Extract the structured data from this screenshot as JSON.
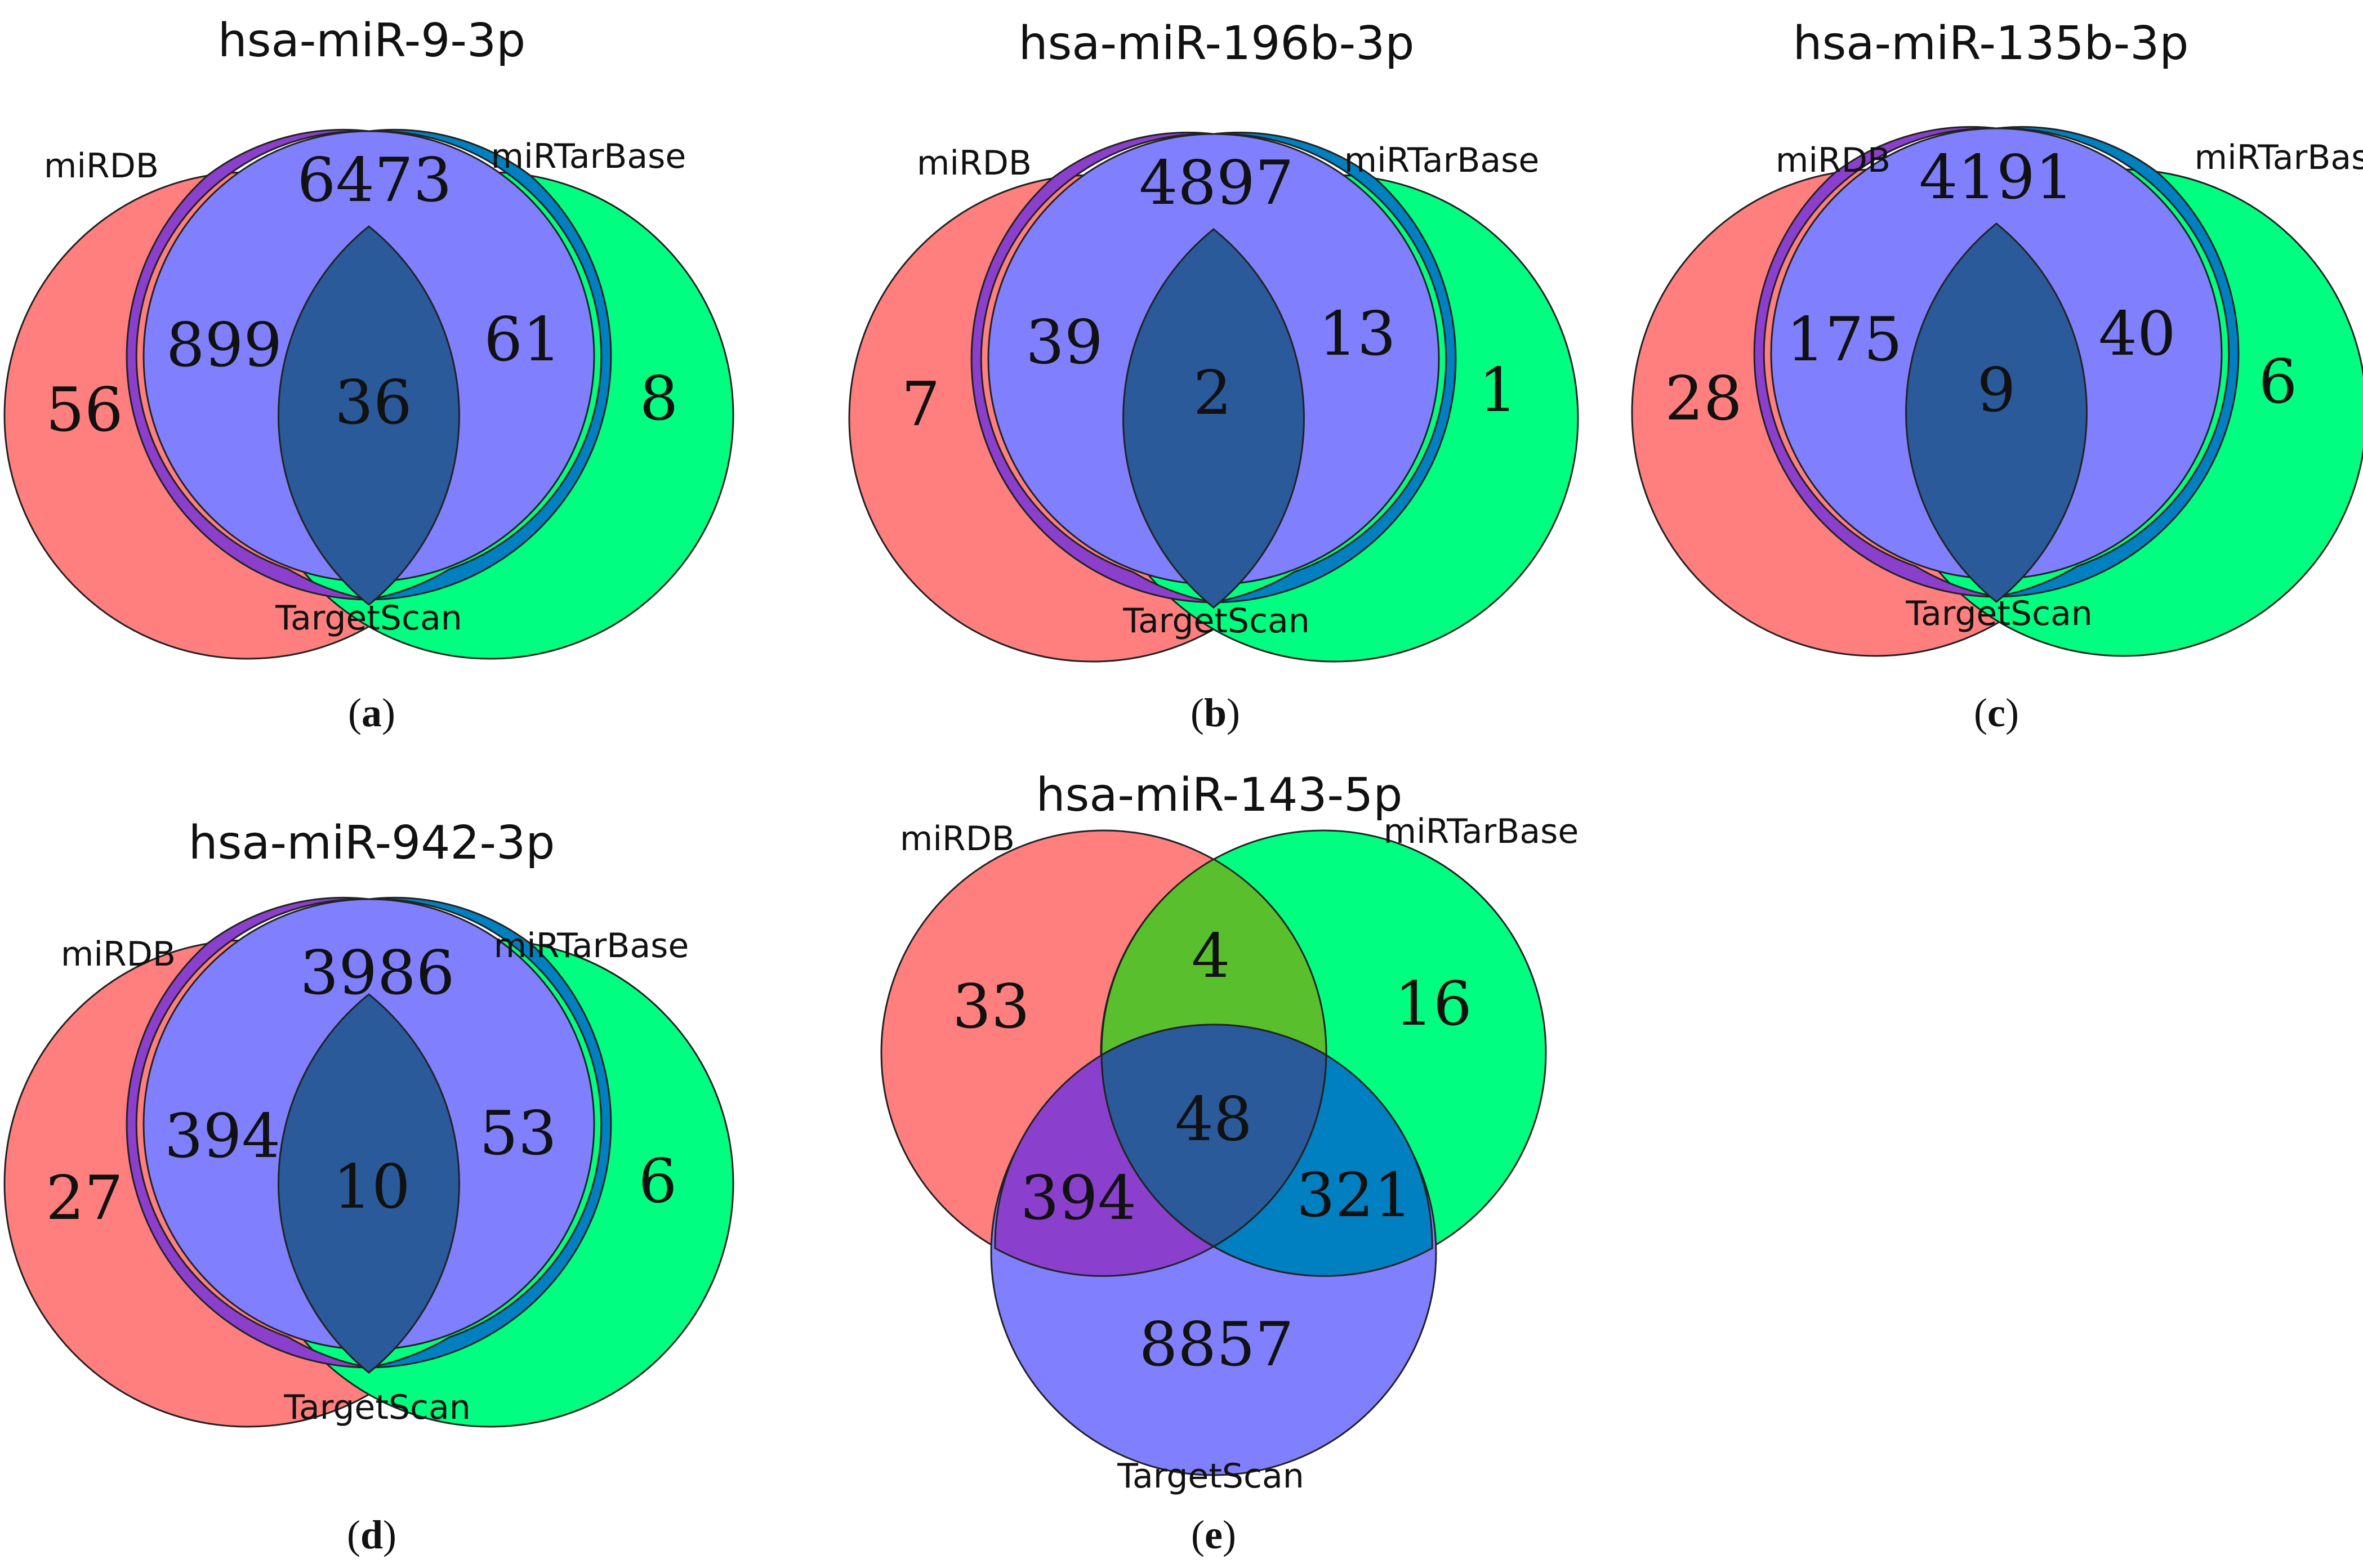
{
  "colors": {
    "miRDB": "#ff7f7f",
    "miRTarBase": "#00ff80",
    "TargetScan": "#8080ff",
    "outline": "#222222"
  },
  "panels": [
    {
      "id": "a",
      "caption_letter": "a",
      "title": "hsa-miR-9-3p",
      "set_labels": {
        "left": "miRDB",
        "right": "miRTarBase",
        "bottom": "TargetScan"
      },
      "regions": {
        "miRDB_only": "56",
        "miRTarBase_only": "8",
        "TargetScan_only": "6473",
        "miRDB_TargetScan": "899",
        "miRTarBase_TargetScan": "61",
        "all_three": "36"
      }
    },
    {
      "id": "b",
      "caption_letter": "b",
      "title": "hsa-miR-196b-3p",
      "set_labels": {
        "left": "miRDB",
        "right": "miRTarBase",
        "bottom": "TargetScan"
      },
      "regions": {
        "miRDB_only": "7",
        "miRTarBase_only": "1",
        "TargetScan_only": "4897",
        "miRDB_TargetScan": "39",
        "miRTarBase_TargetScan": "13",
        "all_three": "2"
      }
    },
    {
      "id": "c",
      "caption_letter": "c",
      "title": "hsa-miR-135b-3p",
      "set_labels": {
        "left": "miRDB",
        "right": "miRTarBase",
        "bottom": "TargetScan"
      },
      "regions": {
        "miRDB_only": "28",
        "miRTarBase_only": "6",
        "TargetScan_only": "4191",
        "miRDB_TargetScan": "175",
        "miRTarBase_TargetScan": "40",
        "all_three": "9"
      }
    },
    {
      "id": "d",
      "caption_letter": "d",
      "title": "hsa-miR-942-3p",
      "set_labels": {
        "left": "miRDB",
        "right": "miRTarBase",
        "bottom": "TargetScan"
      },
      "regions": {
        "miRDB_only": "27",
        "miRTarBase_only": "6",
        "TargetScan_only": "3986",
        "miRDB_TargetScan": "394",
        "miRTarBase_TargetScan": "53",
        "all_three": "10"
      }
    },
    {
      "id": "e",
      "caption_letter": "e",
      "title": "hsa-miR-143-5p",
      "set_labels": {
        "left": "miRDB",
        "right": "miRTarBase",
        "bottom": "TargetScan"
      },
      "regions": {
        "miRDB_only": "33",
        "miRTarBase_only": "16",
        "TargetScan_only": "8857",
        "miRDB_miRTarBase": "4",
        "miRDB_TargetScan": "394",
        "miRTarBase_TargetScan": "321",
        "all_three": "48"
      }
    }
  ]
}
